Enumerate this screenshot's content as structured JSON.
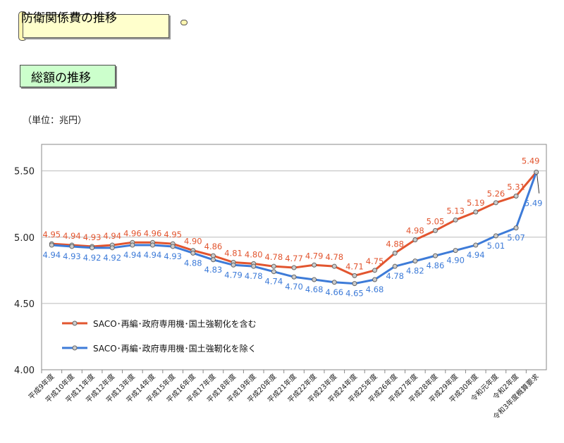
{
  "header": {
    "title": "防衛関係費の推移"
  },
  "subheader": {
    "title": "総額の推移"
  },
  "unit_label": "（単位：兆円）",
  "colors": {
    "series1": "#e2552f",
    "series2": "#3d7bd8",
    "axis": "#888888",
    "grid": "#bbbbbb"
  },
  "chart_data": {
    "type": "line",
    "categories": [
      "平成9年度",
      "平成10年度",
      "平成11年度",
      "平成12年度",
      "平成13年度",
      "平成14年度",
      "平成15年度",
      "平成16年度",
      "平成17年度",
      "平成18年度",
      "平成19年度",
      "平成20年度",
      "平成21年度",
      "平成22年度",
      "平成23年度",
      "平成24年度",
      "平成25年度",
      "平成26年度",
      "平成27年度",
      "平成28年度",
      "平成29年度",
      "平成30年度",
      "令和元年度",
      "令和2年度",
      "令和3年度概算要求"
    ],
    "series": [
      {
        "name": "SACO･再編･政府専用機･国土強靭化を含む",
        "values": [
          4.95,
          4.94,
          4.93,
          4.94,
          4.96,
          4.96,
          4.95,
          4.9,
          4.86,
          4.81,
          4.8,
          4.78,
          4.77,
          4.79,
          4.78,
          4.71,
          4.75,
          4.88,
          4.98,
          5.05,
          5.13,
          5.19,
          5.26,
          5.31,
          5.49
        ],
        "labels": [
          "4.95",
          "4.94",
          "4.93",
          "4.94",
          "4.96",
          "4.96",
          "4.95",
          "4.90",
          "4.86",
          "4.81",
          "4.80",
          "4.78",
          "4.77",
          "4.79",
          "4.78",
          "4.71",
          "4.75",
          "4.88",
          "4.98",
          "5.05",
          "5.13",
          "5.19",
          "5.26",
          "5.31",
          "5.49"
        ]
      },
      {
        "name": "SACO･再編･政府専用機･国土強靭化を除く",
        "values": [
          4.94,
          4.93,
          4.92,
          4.92,
          4.94,
          4.94,
          4.93,
          4.88,
          4.83,
          4.79,
          4.78,
          4.74,
          4.7,
          4.68,
          4.66,
          4.65,
          4.68,
          4.78,
          4.82,
          4.86,
          4.9,
          4.94,
          5.01,
          5.07,
          5.49
        ],
        "labels": [
          "4.94",
          "4.93",
          "4.92",
          "4.92",
          "4.94",
          "4.94",
          "4.93",
          "4.88",
          "4.83",
          "4.79",
          "4.78",
          "4.74",
          "4.70",
          "4.68",
          "4.66",
          "4.65",
          "4.68",
          "4.78",
          "4.82",
          "4.86",
          "4.90",
          "4.94",
          "5.01",
          "5.07",
          "5.49"
        ]
      }
    ],
    "yticks": [
      "4.00",
      "4.50",
      "5.00",
      "5.50"
    ],
    "ylim": [
      4.0,
      5.7
    ],
    "grid": true,
    "legend": "inside-bottom-left"
  }
}
